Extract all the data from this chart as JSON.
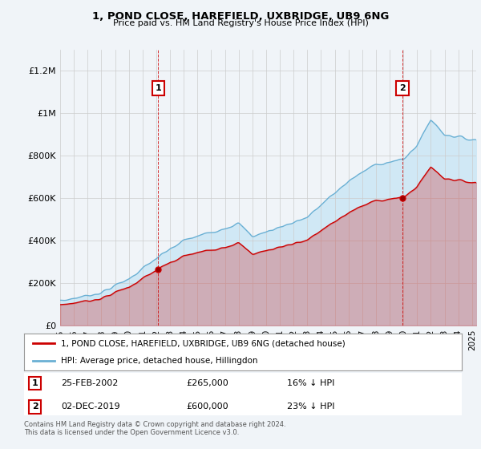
{
  "title": "1, POND CLOSE, HAREFIELD, UXBRIDGE, UB9 6NG",
  "subtitle": "Price paid vs. HM Land Registry's House Price Index (HPI)",
  "legend_line1": "1, POND CLOSE, HAREFIELD, UXBRIDGE, UB9 6NG (detached house)",
  "legend_line2": "HPI: Average price, detached house, Hillingdon",
  "annotation1_label": "1",
  "annotation1_date": "25-FEB-2002",
  "annotation1_price": "£265,000",
  "annotation1_hpi": "16% ↓ HPI",
  "annotation2_label": "2",
  "annotation2_date": "02-DEC-2019",
  "annotation2_price": "£600,000",
  "annotation2_hpi": "23% ↓ HPI",
  "footer": "Contains HM Land Registry data © Crown copyright and database right 2024.\nThis data is licensed under the Open Government Licence v3.0.",
  "hpi_color": "#6ab0d4",
  "hpi_fill_color": "#d0e8f5",
  "price_color": "#cc0000",
  "background_color": "#f0f4f8",
  "plot_bg_color": "#f0f4f8",
  "grid_color": "#cccccc",
  "ylim": [
    0,
    1300000
  ],
  "yticks": [
    0,
    200000,
    400000,
    600000,
    800000,
    1000000,
    1200000
  ],
  "ytick_labels": [
    "£0",
    "£200K",
    "£400K",
    "£600K",
    "£800K",
    "£1M",
    "£1.2M"
  ],
  "sale1_x": 2002.15,
  "sale1_y": 265000,
  "sale2_x": 2019.92,
  "sale2_y": 600000,
  "xmin": 1995,
  "xmax": 2025.3
}
